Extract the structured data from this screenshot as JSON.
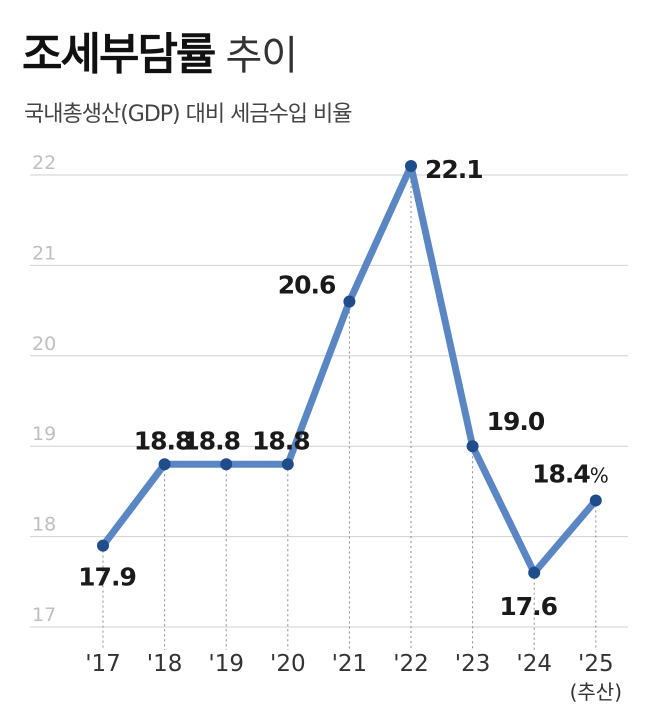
{
  "title": {
    "main": "조세부담률",
    "suffix": "추이"
  },
  "subtitle": "국내총생산(GDP) 대비 세금수입 비율",
  "colors": {
    "line": "#5b86c4",
    "marker": "#1f4d8c",
    "grid": "#d0d0d0",
    "tick": "#bfbfbf",
    "label": "#1a1a1a"
  },
  "chart_data": {
    "type": "line",
    "title": "조세부담률 추이",
    "subtitle": "국내총생산(GDP) 대비 세금수입 비율",
    "categories": [
      "'17",
      "'18",
      "'19",
      "'20",
      "'21",
      "'22",
      "'23",
      "'24",
      "'25"
    ],
    "category_notes": [
      "",
      "",
      "",
      "",
      "",
      "",
      "",
      "",
      "(추산)"
    ],
    "values": [
      17.9,
      18.8,
      18.8,
      18.8,
      20.6,
      22.1,
      19.0,
      17.6,
      18.4
    ],
    "value_labels": [
      "17.9",
      "18.8",
      "18.8",
      "18.8",
      "20.6",
      "22.1",
      "19.0",
      "17.6",
      "18.4"
    ],
    "unit": "%",
    "ylim": [
      17,
      22
    ],
    "yticks": [
      "22",
      "21",
      "20",
      "19",
      "18",
      "17"
    ],
    "grid": true
  }
}
